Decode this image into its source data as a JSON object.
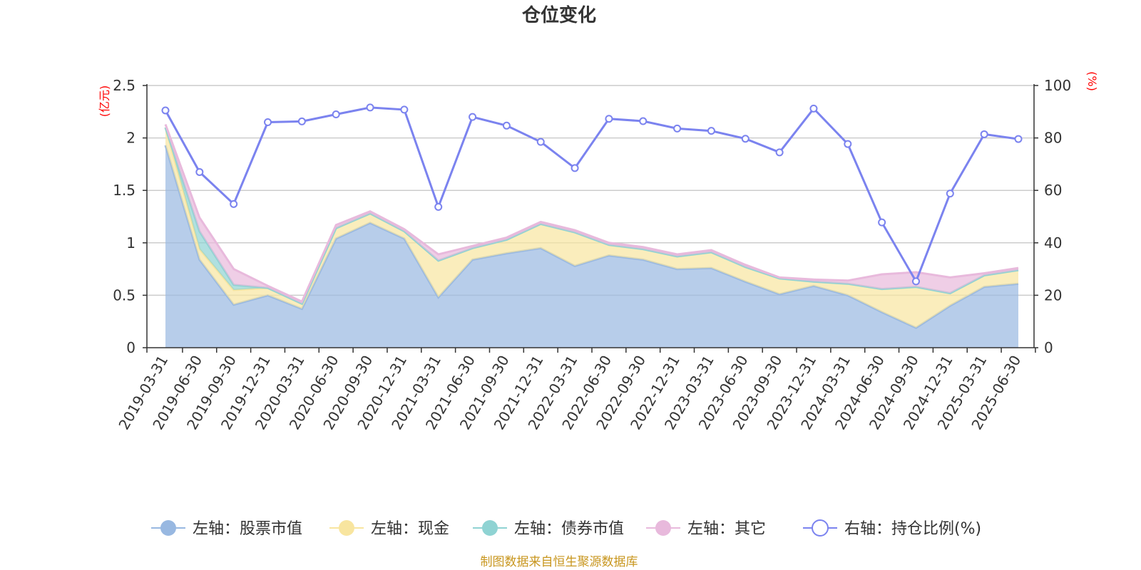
{
  "chart_data": {
    "type": "area",
    "title": "仓位变化",
    "left_unit": "(亿元)",
    "right_unit": "(%)",
    "x": [
      "2019-03-31",
      "2019-06-30",
      "2019-09-30",
      "2019-12-31",
      "2020-03-31",
      "2020-06-30",
      "2020-09-30",
      "2020-12-31",
      "2021-03-31",
      "2021-06-30",
      "2021-09-30",
      "2021-12-31",
      "2022-03-31",
      "2022-06-30",
      "2022-09-30",
      "2022-12-31",
      "2023-03-31",
      "2023-06-30",
      "2023-09-30",
      "2023-12-31",
      "2024-03-31",
      "2024-06-30",
      "2024-09-30",
      "2024-12-31",
      "2025-03-31",
      "2025-06-30"
    ],
    "left_ylim": [
      0,
      2.5
    ],
    "left_yticks": [
      "0",
      "0.5",
      "1",
      "1.5",
      "2",
      "2.5"
    ],
    "right_ylim": [
      0,
      100
    ],
    "right_yticks": [
      "0",
      "20",
      "40",
      "60",
      "80",
      "100"
    ],
    "grid": true,
    "legend_position": "bottom",
    "series": [
      {
        "name": "左轴：股票市值",
        "axis": "left",
        "kind": "stacked-area",
        "color": "#98b8e1",
        "values": [
          1.93,
          0.84,
          0.41,
          0.5,
          0.37,
          1.04,
          1.19,
          1.04,
          0.48,
          0.84,
          0.9,
          0.95,
          0.78,
          0.88,
          0.84,
          0.75,
          0.76,
          0.63,
          0.51,
          0.59,
          0.5,
          0.34,
          0.19,
          0.4,
          0.58,
          0.61
        ]
      },
      {
        "name": "左轴：现金",
        "axis": "left",
        "kind": "stacked-area",
        "color": "#f8e59f",
        "values": [
          0.17,
          0.1,
          0.14,
          0.07,
          0.05,
          0.1,
          0.09,
          0.07,
          0.35,
          0.11,
          0.13,
          0.23,
          0.32,
          0.1,
          0.1,
          0.12,
          0.15,
          0.14,
          0.15,
          0.04,
          0.11,
          0.22,
          0.39,
          0.12,
          0.11,
          0.13
        ]
      },
      {
        "name": "左轴：债券市值",
        "axis": "left",
        "kind": "stacked-area",
        "color": "#8fd3d3",
        "values": [
          0.0,
          0.17,
          0.05,
          0.0,
          0.0,
          0.0,
          0.0,
          0.0,
          0.0,
          0.0,
          0.0,
          0.0,
          0.0,
          0.0,
          0.0,
          0.0,
          0.0,
          0.0,
          0.0,
          0.0,
          0.0,
          0.0,
          0.0,
          0.0,
          0.0,
          0.0
        ]
      },
      {
        "name": "左轴：其它",
        "axis": "left",
        "kind": "stacked-area",
        "color": "#e8b9dc",
        "values": [
          0.03,
          0.13,
          0.15,
          0.02,
          0.02,
          0.03,
          0.02,
          0.02,
          0.06,
          0.02,
          0.02,
          0.02,
          0.02,
          0.02,
          0.02,
          0.02,
          0.02,
          0.02,
          0.01,
          0.02,
          0.03,
          0.14,
          0.14,
          0.15,
          0.02,
          0.02
        ]
      },
      {
        "name": "右轴：持仓比例(%)",
        "axis": "right",
        "kind": "line",
        "color": "#7b83ef",
        "values": [
          90.5,
          67.0,
          54.8,
          86.0,
          86.3,
          89.0,
          91.6,
          90.8,
          53.7,
          88.0,
          84.7,
          78.5,
          68.5,
          87.3,
          86.4,
          83.6,
          82.7,
          79.7,
          74.5,
          91.2,
          77.7,
          47.8,
          25.3,
          58.8,
          81.4,
          79.6
        ]
      }
    ],
    "source_note": "制图数据来自恒生聚源数据库"
  }
}
